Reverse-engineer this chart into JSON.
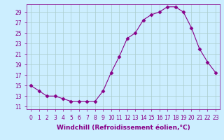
{
  "x": [
    0,
    1,
    2,
    3,
    4,
    5,
    6,
    7,
    8,
    9,
    10,
    11,
    12,
    13,
    14,
    15,
    16,
    17,
    18,
    19,
    20,
    21,
    22,
    23
  ],
  "y": [
    15,
    14,
    13,
    13,
    12.5,
    12,
    12,
    12,
    12,
    14,
    17.5,
    20.5,
    24,
    25,
    27.5,
    28.5,
    29,
    30,
    30,
    29,
    26,
    22,
    19.5,
    17.5
  ],
  "line_color": "#880088",
  "marker": "D",
  "marker_size": 2.5,
  "bg_color": "#cceeff",
  "grid_color": "#aacccc",
  "xlabel": "Windchill (Refroidissement éolien,°C)",
  "xlabel_fontsize": 6.5,
  "ylabel_ticks": [
    11,
    13,
    15,
    17,
    19,
    21,
    23,
    25,
    27,
    29
  ],
  "xtick_labels": [
    "0",
    "1",
    "2",
    "3",
    "4",
    "5",
    "6",
    "7",
    "8",
    "9",
    "10",
    "11",
    "12",
    "13",
    "14",
    "15",
    "16",
    "17",
    "18",
    "19",
    "20",
    "21",
    "22",
    "23"
  ],
  "xlim": [
    -0.5,
    23.5
  ],
  "ylim": [
    10.5,
    30.5
  ],
  "tick_fontsize": 5.5
}
